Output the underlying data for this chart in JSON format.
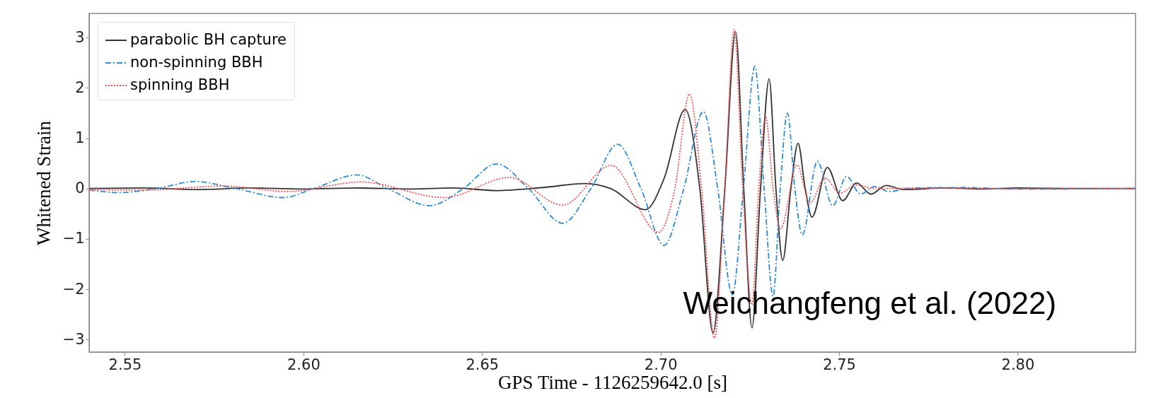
{
  "chart_data": {
    "type": "line",
    "xlabel": "GPS Time - 1126259642.0 [s]",
    "ylabel": "Whitened Strain",
    "xlim": [
      2.54,
      2.833
    ],
    "ylim": [
      -3.25,
      3.48
    ],
    "xticks": [
      2.55,
      {
        "value": 2.6,
        "label": "2.60"
      },
      2.65,
      {
        "value": 2.7,
        "label": "2.70"
      },
      2.75,
      {
        "value": 2.8,
        "label": "2.80"
      }
    ],
    "yticks": [
      -3,
      -2,
      -1,
      0,
      1,
      2,
      3
    ],
    "grid": false,
    "legend": "top left",
    "marker": "none",
    "annotations": [
      "Weichangfeng et al.  (2022)"
    ],
    "series": [
      {
        "name": "parabolic BH capture",
        "color": "#333333",
        "line_style": "solid",
        "x": [
          2.54,
          2.555,
          2.5705,
          2.585,
          2.6,
          2.615,
          2.63,
          2.642,
          2.654,
          2.667,
          2.679,
          2.686,
          2.6958,
          2.701,
          2.7069,
          2.711,
          2.7147,
          2.718,
          2.721,
          2.7233,
          2.7256,
          2.728,
          2.7304,
          2.7323,
          2.7342,
          2.7365,
          2.7385,
          2.7405,
          2.7424,
          2.7467,
          2.751,
          2.7549,
          2.7589,
          2.7632,
          2.768,
          2.78,
          2.79,
          2.8,
          2.815,
          2.833
        ],
        "values": [
          0.0,
          0.01,
          -0.02,
          0.01,
          -0.01,
          0.01,
          -0.01,
          0.01,
          -0.04,
          0.02,
          0.1,
          0.0,
          -0.42,
          0.2,
          1.57,
          0.0,
          -2.87,
          0.0,
          3.12,
          0.0,
          -2.77,
          0.0,
          2.18,
          0.0,
          -1.43,
          0.0,
          0.9,
          0.0,
          -0.57,
          0.42,
          -0.24,
          0.11,
          -0.11,
          0.06,
          -0.02,
          0.01,
          -0.01,
          0.01,
          0.0,
          0.0
        ]
      },
      {
        "name": "non-spinning BBH",
        "color": "#2e8bd6",
        "line_style": "dashdot",
        "x": [
          2.54,
          2.5486,
          2.559,
          2.5697,
          2.581,
          2.5944,
          2.6029,
          2.615,
          2.6236,
          2.6353,
          2.6448,
          2.6541,
          2.663,
          2.6726,
          2.6805,
          2.688,
          2.6945,
          2.701,
          2.7065,
          2.712,
          2.716,
          2.7201,
          2.7232,
          2.7264,
          2.729,
          2.7315,
          2.7335,
          2.7355,
          2.7376,
          2.7397,
          2.7439,
          2.7482,
          2.7521,
          2.756,
          2.76,
          2.7639,
          2.77,
          2.785,
          2.8,
          2.833
        ],
        "values": [
          -0.03,
          -0.08,
          0.0,
          0.14,
          0.0,
          -0.18,
          0.0,
          0.27,
          0.0,
          -0.34,
          0.0,
          0.49,
          0.0,
          -0.69,
          0.0,
          0.88,
          0.0,
          -1.13,
          0.0,
          1.53,
          0.0,
          -2.11,
          0.0,
          2.43,
          0.0,
          -2.14,
          0.0,
          1.5,
          0.0,
          -0.92,
          0.54,
          -0.34,
          0.24,
          -0.11,
          0.04,
          -0.06,
          0.01,
          0.02,
          -0.01,
          0.0
        ]
      },
      {
        "name": "spinning BBH",
        "color": "#ff4d4d",
        "line_style": "dotted",
        "x": [
          2.54,
          2.555,
          2.5777,
          2.5956,
          2.6162,
          2.6394,
          2.6577,
          2.6726,
          2.6862,
          2.6994,
          2.704,
          2.7081,
          2.7115,
          2.7151,
          2.718,
          2.7206,
          2.723,
          2.7256,
          2.7275,
          2.7294,
          2.7315,
          2.7336,
          2.7382,
          2.7418,
          2.746,
          2.7503,
          2.7546,
          2.76,
          2.78,
          2.8,
          2.833
        ],
        "values": [
          -0.02,
          -0.03,
          0.05,
          -0.06,
          0.13,
          -0.18,
          0.22,
          -0.33,
          0.46,
          -0.87,
          0.0,
          1.88,
          0.0,
          -2.97,
          0.0,
          3.16,
          0.0,
          -2.31,
          0.0,
          1.43,
          0.0,
          -0.8,
          0.47,
          -0.29,
          0.21,
          -0.09,
          0.07,
          0.0,
          0.01,
          -0.01,
          0.0
        ]
      }
    ]
  }
}
